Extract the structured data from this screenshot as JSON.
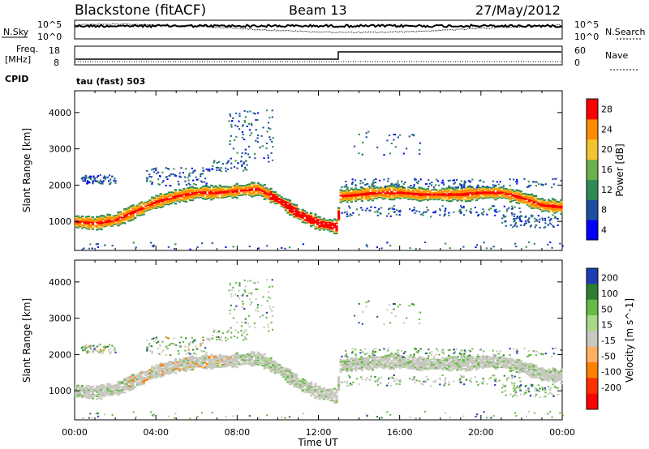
{
  "header": {
    "station": "Blackstone (fitACF)",
    "beam": "Beam 13",
    "date": "27/May/2012"
  },
  "noise_panel": {
    "left_label": "N.Sky",
    "right_label": "N.Search",
    "left_ticks": [
      "10^5",
      "10^0"
    ],
    "right_ticks": [
      "10^5",
      "10^0"
    ]
  },
  "freq_panel": {
    "left_label_line1": "Freq.",
    "left_label_line2": "[MHz]",
    "right_label": "Nave",
    "left_ticks": [
      "18",
      "8"
    ],
    "right_ticks": [
      "60",
      "0"
    ],
    "cpid_label": "CPID",
    "cpid_value": "tau (fast) 503"
  },
  "chart_data": [
    {
      "type": "heatmap",
      "name": "power",
      "ylabel": "Slant Range [km]",
      "y_ticks": [
        "1000",
        "2000",
        "3000",
        "4000"
      ],
      "ylim": [
        200,
        4600
      ],
      "colorbar_label": "Power [dB]",
      "colorbar_ticks": [
        "4",
        "8",
        "12",
        "16",
        "20",
        "24",
        "28"
      ],
      "colorbar_colors": [
        "#0000ff",
        "#1e4ea0",
        "#2e8b57",
        "#6ab04c",
        "#f4c430",
        "#ff8c00",
        "#ff0000"
      ],
      "bands": [
        {
          "x": [
            0,
            1,
            2,
            3,
            4,
            5,
            6,
            7,
            8,
            9,
            10,
            11,
            12,
            12.9,
            13,
            14,
            15,
            16,
            17,
            18,
            19,
            20,
            21,
            22,
            23,
            24
          ],
          "y": [
            1000,
            950,
            1050,
            1300,
            1550,
            1700,
            1800,
            1800,
            1850,
            1900,
            1600,
            1200,
            950,
            850,
            1700,
            1750,
            1800,
            1800,
            1750,
            1750,
            1750,
            1800,
            1800,
            1650,
            1450,
            1400
          ]
        }
      ]
    },
    {
      "type": "heatmap",
      "name": "velocity",
      "ylabel": "Slant Range [km]",
      "xlabel": "Time UT",
      "x_ticks": [
        "00:00",
        "04:00",
        "08:00",
        "12:00",
        "16:00",
        "20:00",
        "00:00"
      ],
      "y_ticks": [
        "1000",
        "2000",
        "3000",
        "4000"
      ],
      "ylim": [
        200,
        4600
      ],
      "colorbar_label": "Velocity [m s^-1]",
      "colorbar_ticks": [
        "200",
        "100",
        "50",
        "15",
        "-15",
        "-50",
        "-100",
        "-200"
      ],
      "colorbar_colors": [
        "#1e3cb4",
        "#2e7d32",
        "#66bb44",
        "#a8d888",
        "#c8c8c0",
        "#ffb060",
        "#ff8000",
        "#ff3000",
        "#ff0000"
      ]
    }
  ]
}
